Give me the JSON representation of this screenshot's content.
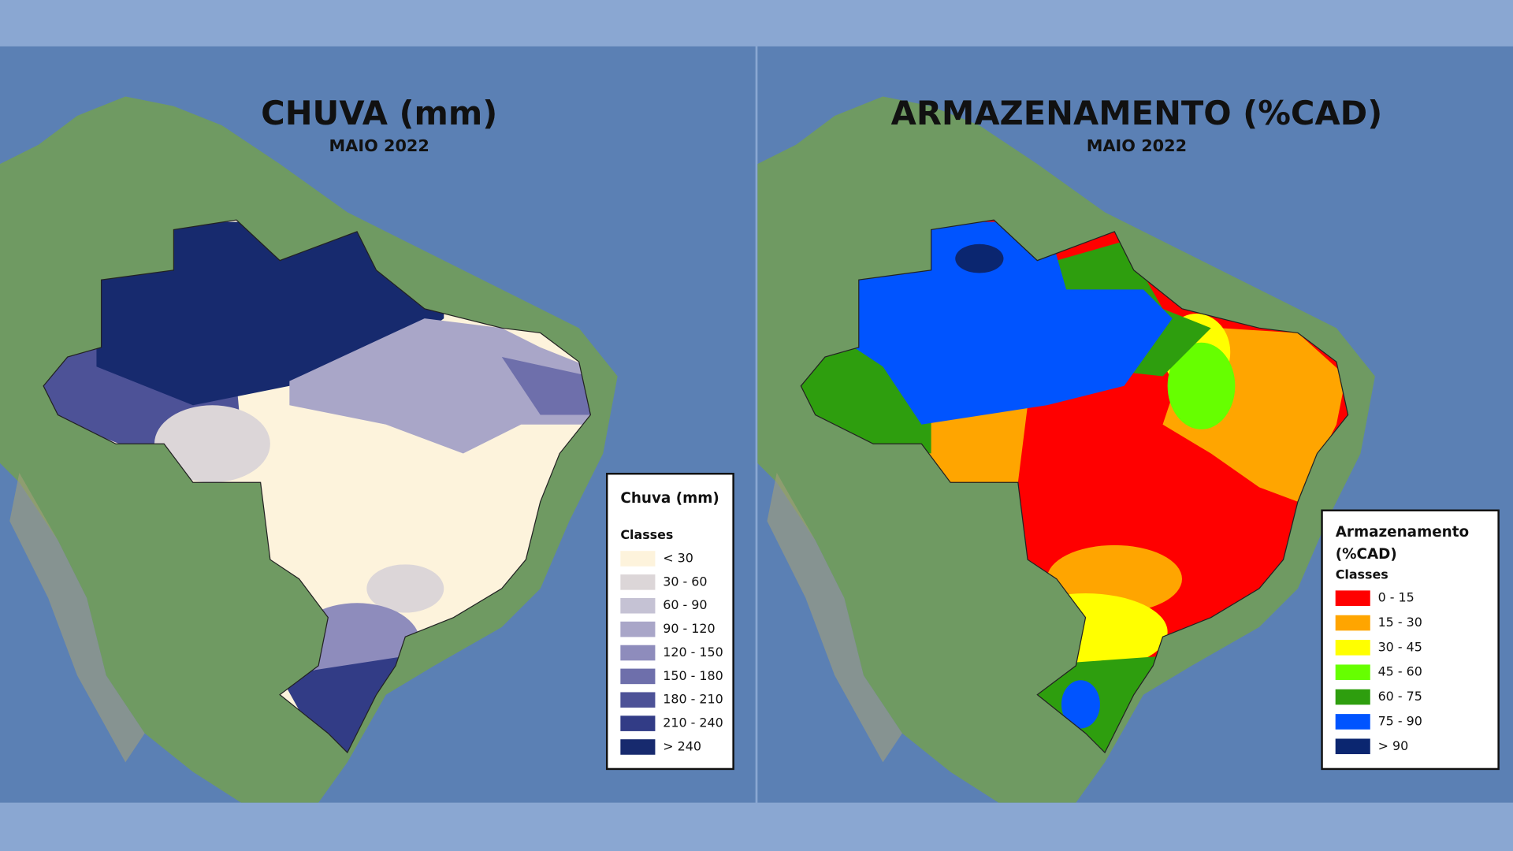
{
  "maps": [
    {
      "title": "CHUVA (mm)",
      "subtitle": "MAIO 2022",
      "legend_title_lines": [
        "Chuva (mm)"
      ],
      "legend_subtitle": "Classes",
      "classes": [
        {
          "label": "< 30",
          "color": "#fdf3dc"
        },
        {
          "label": "30 - 60",
          "color": "#dcd6d8"
        },
        {
          "label": "60 - 90",
          "color": "#c5c2d4"
        },
        {
          "label": "90 - 120",
          "color": "#a9a6c8"
        },
        {
          "label": "120 - 150",
          "color": "#8e8cbc"
        },
        {
          "label": "150 - 180",
          "color": "#6e6fab"
        },
        {
          "label": "180 - 210",
          "color": "#4d5297"
        },
        {
          "label": "210 - 240",
          "color": "#323c86"
        },
        {
          "label": "> 240",
          "color": "#172a6e"
        }
      ]
    },
    {
      "title": "ARMAZENAMENTO (%CAD)",
      "subtitle": "MAIO 2022",
      "legend_title_lines": [
        "Armazenamento",
        "(%CAD)"
      ],
      "legend_subtitle": "Classes",
      "classes": [
        {
          "label": "0 - 15",
          "color": "#ff0000"
        },
        {
          "label": "15 - 30",
          "color": "#ffa500"
        },
        {
          "label": "30 - 45",
          "color": "#ffff00"
        },
        {
          "label": "45 - 60",
          "color": "#66ff00"
        },
        {
          "label": "60 - 75",
          "color": "#2e9e0e"
        },
        {
          "label": "75 - 90",
          "color": "#0054ff"
        },
        {
          "label": "> 90",
          "color": "#0b2670"
        }
      ]
    }
  ]
}
